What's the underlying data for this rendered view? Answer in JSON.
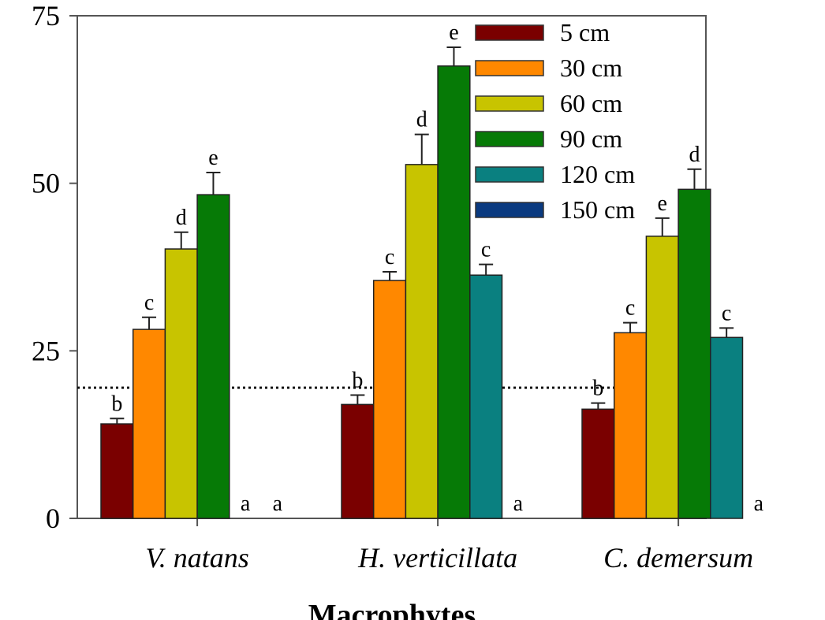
{
  "chart_data": {
    "type": "bar",
    "title": "",
    "xlabel": "Macrophytes",
    "ylabel": "",
    "ylim": [
      0,
      75
    ],
    "yticks": [
      "0",
      "25",
      "50",
      "75"
    ],
    "categories": [
      "V. natans",
      "H. verticillata",
      "C. demersum"
    ],
    "legend_position": "top-center",
    "reference_line": {
      "y": 19.5,
      "style": "dotted"
    },
    "series": [
      {
        "name": "5 cm",
        "color": "#7a0000",
        "values": [
          14.1,
          17.0,
          16.3
        ],
        "errors": [
          0.8,
          1.4,
          0.9
        ],
        "labels": [
          "b",
          "b",
          "b"
        ]
      },
      {
        "name": "30 cm",
        "color": "#ff8800",
        "values": [
          28.2,
          35.5,
          27.7
        ],
        "errors": [
          1.8,
          1.3,
          1.5
        ],
        "labels": [
          "c",
          "c",
          "c"
        ]
      },
      {
        "name": "60 cm",
        "color": "#c8c400",
        "values": [
          40.2,
          52.8,
          42.1
        ],
        "errors": [
          2.5,
          4.5,
          2.7
        ],
        "labels": [
          "d",
          "d",
          "e"
        ]
      },
      {
        "name": "90 cm",
        "color": "#067a06",
        "values": [
          48.3,
          67.5,
          49.1
        ],
        "errors": [
          3.3,
          2.8,
          3.0
        ],
        "labels": [
          "e",
          "e",
          "d"
        ]
      },
      {
        "name": "120 cm",
        "color": "#0a8080",
        "values": [
          0,
          36.3,
          27.0
        ],
        "errors": [
          0,
          1.6,
          1.4
        ],
        "labels": [
          "a",
          "c",
          "c"
        ]
      },
      {
        "name": "150 cm",
        "color": "#0a3a80",
        "values": [
          0,
          0,
          0
        ],
        "errors": [
          0,
          0,
          0
        ],
        "labels": [
          "a",
          "a",
          "a"
        ]
      }
    ]
  }
}
